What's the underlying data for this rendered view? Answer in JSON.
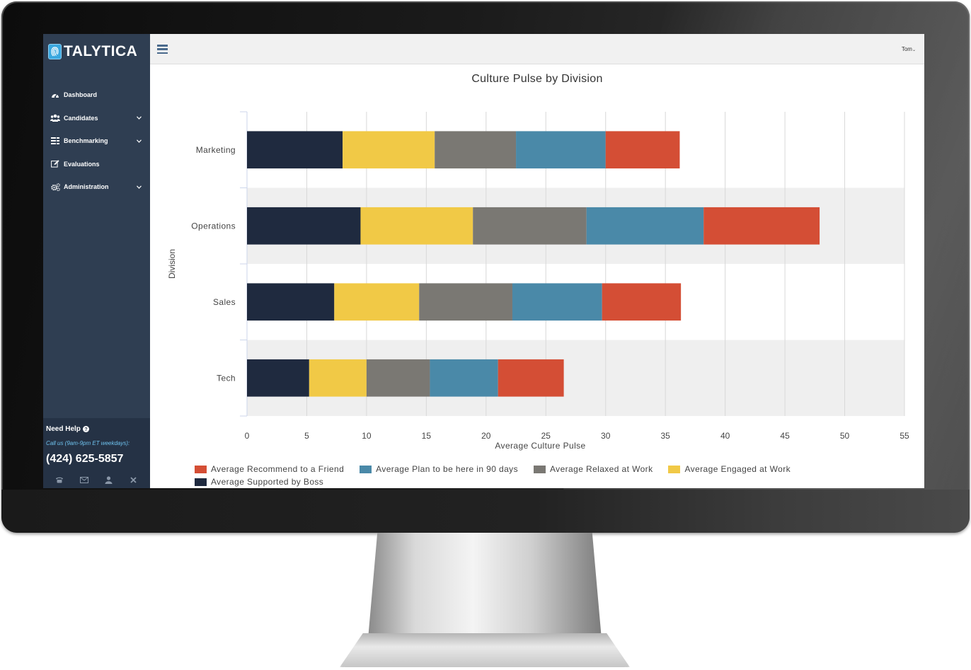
{
  "app": {
    "brand": "TALYTICA",
    "user": "Tom"
  },
  "sidebar": {
    "items": [
      {
        "label": "Dashboard",
        "icon": "dashboard-icon",
        "has_children": false
      },
      {
        "label": "Candidates",
        "icon": "users-icon",
        "has_children": true
      },
      {
        "label": "Benchmarking",
        "icon": "list-icon",
        "has_children": true
      },
      {
        "label": "Evaluations",
        "icon": "edit-icon",
        "has_children": false
      },
      {
        "label": "Administration",
        "icon": "cogs-icon",
        "has_children": true
      }
    ],
    "help": {
      "title": "Need Help",
      "hours": "Call us (9am-9pm ET weekdays):",
      "phone": "(424) 625-5857",
      "icons": [
        "phone-icon",
        "mail-icon",
        "user-icon",
        "close-icon"
      ]
    }
  },
  "colors": {
    "sidebar_bg": "#2f3e52",
    "recommend": "#d44e35",
    "plan90": "#4a89a8",
    "relaxed": "#7a7873",
    "engaged": "#f1c946",
    "supported": "#1f2a3f"
  },
  "chart_data": {
    "type": "bar",
    "orientation": "horizontal",
    "stacked": true,
    "title": "Culture Pulse by Division",
    "xlabel": "Average Culture Pulse",
    "ylabel": "Division",
    "xlim": [
      0,
      55
    ],
    "xticks": [
      0,
      5,
      10,
      15,
      20,
      25,
      30,
      35,
      40,
      45,
      50,
      55
    ],
    "grid": true,
    "legend_position": "bottom",
    "categories": [
      "Marketing",
      "Operations",
      "Sales",
      "Tech"
    ],
    "series": [
      {
        "name": "Average Supported by Boss",
        "color": "#1f2a3f",
        "values": [
          8.0,
          9.5,
          7.3,
          5.2
        ]
      },
      {
        "name": "Average Engaged at Work",
        "color": "#f1c946",
        "values": [
          7.7,
          9.4,
          7.1,
          4.8
        ]
      },
      {
        "name": "Average Relaxed at Work",
        "color": "#7a7873",
        "values": [
          6.8,
          9.5,
          7.8,
          5.3
        ]
      },
      {
        "name": "Average Plan to be here in 90 days",
        "color": "#4a89a8",
        "values": [
          7.5,
          9.8,
          7.5,
          5.7
        ]
      },
      {
        "name": "Average Recommend to a Friend",
        "color": "#d44e35",
        "values": [
          6.2,
          9.7,
          6.6,
          5.5
        ]
      }
    ],
    "legend_order": [
      "Average Recommend to a Friend",
      "Average Plan to be here in 90 days",
      "Average Relaxed at Work",
      "Average Engaged at Work",
      "Average Supported by Boss"
    ]
  }
}
